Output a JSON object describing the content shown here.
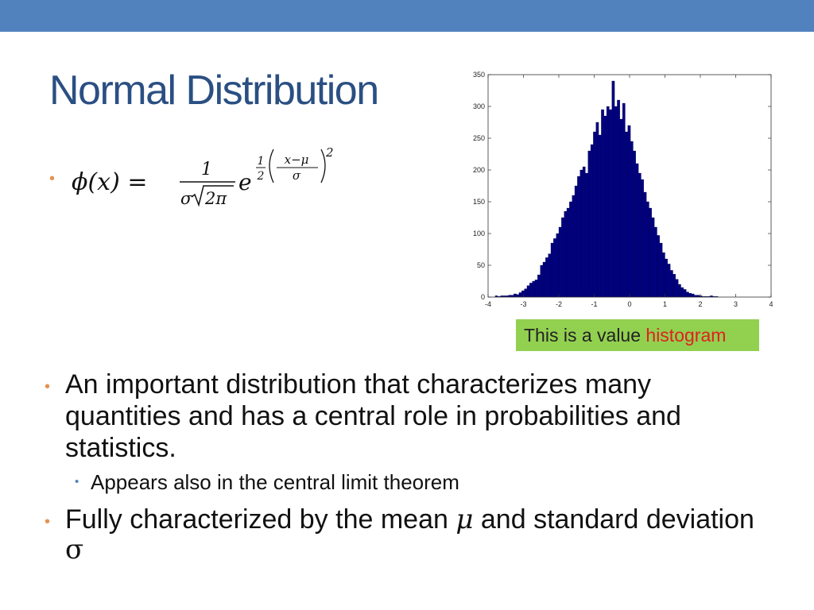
{
  "slide": {
    "title": "Normal Distribution",
    "caption": {
      "prefix": "This is a value ",
      "highlight": "histogram"
    },
    "bullets": [
      "An important distribution that characterizes many quantities and has a central role in probabilities and statistics.",
      "Appears also in the central limit theorem"
    ],
    "bullet3": {
      "text": "Fully characterized by the mean ",
      "mu": "μ",
      "middle": " and standard deviation ",
      "sigma": "σ"
    },
    "formula": {
      "lhs": "ϕ(x) =",
      "num": "1",
      "den_sigma": "σ",
      "den_root": "2π",
      "base": "e",
      "exp_frac_num": "1",
      "exp_frac_den": "2",
      "exp_num": "x−μ",
      "exp_den": "σ",
      "exp_power": "2"
    },
    "colors": {
      "top_bar": "#5182bd",
      "title": "#2a4f83",
      "bullet": "#e6924f",
      "caption_bg": "#92d050",
      "caption_highlight": "#e02020",
      "bars": "#000080"
    }
  },
  "chart_data": {
    "type": "bar",
    "xlim": [
      -4,
      4
    ],
    "ylim": [
      0,
      350
    ],
    "x_ticks": [
      "-4",
      "-3",
      "-2",
      "-1",
      "0",
      "1",
      "2",
      "3",
      "4"
    ],
    "y_ticks": [
      "0",
      "50",
      "100",
      "150",
      "200",
      "250",
      "300",
      "350"
    ],
    "bin_start": -3.8,
    "bin_width": 0.075,
    "values": [
      2,
      1,
      2,
      2,
      2,
      3,
      3,
      5,
      4,
      7,
      10,
      13,
      18,
      22,
      25,
      27,
      35,
      50,
      55,
      62,
      68,
      85,
      92,
      100,
      110,
      125,
      135,
      140,
      150,
      160,
      175,
      190,
      200,
      205,
      195,
      230,
      240,
      260,
      275,
      255,
      295,
      285,
      300,
      295,
      340,
      300,
      310,
      280,
      305,
      260,
      270,
      245,
      230,
      210,
      195,
      185,
      165,
      150,
      140,
      125,
      110,
      97,
      85,
      70,
      60,
      52,
      42,
      36,
      28,
      20,
      15,
      12,
      8,
      6,
      5,
      3,
      3,
      2,
      1,
      1,
      1,
      2,
      1,
      1
    ]
  }
}
